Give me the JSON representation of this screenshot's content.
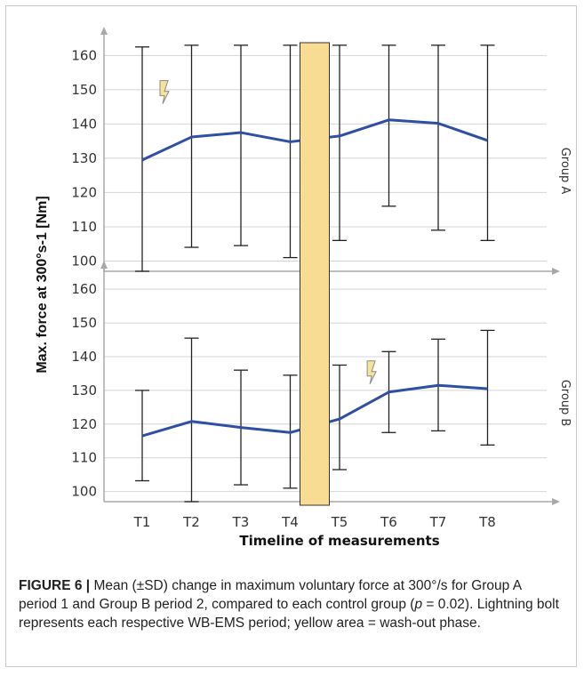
{
  "chart_data": [
    {
      "type": "line",
      "group_label": "Group A",
      "categories": [
        "T1",
        "T2",
        "T3",
        "T4",
        "T5",
        "T6",
        "T7",
        "T8"
      ],
      "series": [
        {
          "mean": [
            129.5,
            136.2,
            137.5,
            134.8,
            136.5,
            141.2,
            140.2,
            135.2
          ],
          "err_low": [
            97,
            104,
            104.5,
            101,
            106,
            116,
            109,
            106
          ],
          "err_high": [
            162.5,
            163,
            163,
            163,
            163,
            163,
            163,
            163
          ]
        }
      ],
      "ylim": [
        97,
        164
      ],
      "yticks": [
        100,
        110,
        120,
        130,
        140,
        150,
        160
      ],
      "lightning_at": 1.0,
      "lightning_y": 148
    },
    {
      "type": "line",
      "group_label": "Group B",
      "categories": [
        "T1",
        "T2",
        "T3",
        "T4",
        "T5",
        "T6",
        "T7",
        "T8"
      ],
      "series": [
        {
          "mean": [
            116.5,
            120.8,
            119,
            117.5,
            121.5,
            129.5,
            131.5,
            130.5
          ],
          "err_low": [
            103.2,
            97,
            102,
            101,
            106.5,
            117.5,
            118,
            113.8
          ],
          "err_high": [
            130,
            145.5,
            136,
            134.5,
            137.5,
            141.5,
            145.2,
            147.8
          ]
        }
      ],
      "ylim": [
        97,
        164
      ],
      "yticks": [
        100,
        110,
        120,
        130,
        140,
        150,
        160
      ],
      "lightning_at": 5.2,
      "lightning_y": 134
    }
  ],
  "axes": {
    "ylabel": "Max. force at 300°s-1 [Nm]",
    "xlabel": "Timeline of measurements",
    "washout_between": [
      "T4",
      "T5"
    ]
  },
  "colors": {
    "line": "#2e4fa3",
    "washout_fill": "#f8dc94",
    "washout_stroke": "#333333",
    "grid": "#d4d4d4",
    "axis": "#a8a8a8",
    "lightning_fill": "#f6e39a",
    "lightning_stroke": "#8a8a8a"
  },
  "caption": {
    "figure_label": "FIGURE 6 |",
    "text_1": " Mean (±SD) change in maximum voluntary force at 300°/s for Group A period 1 and Group B period 2, compared to each control group (",
    "p_symbol": "p",
    "text_2": " = 0.02). Lightning bolt represents each respective WB-EMS period; yellow area = wash-out phase."
  }
}
